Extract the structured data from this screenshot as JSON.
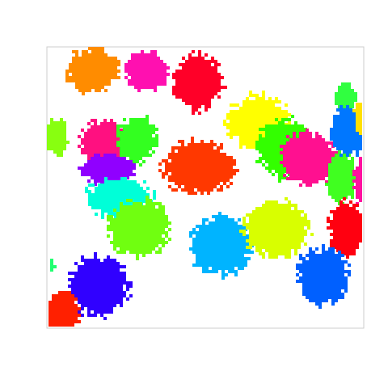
{
  "canvas": {
    "background": "#ffffff",
    "frame_color": "#cccccc"
  },
  "blobs": [
    {
      "name": "orange-blob",
      "color": "#ff8c00"
    },
    {
      "name": "pink-blob-top",
      "color": "#ff10b0"
    },
    {
      "name": "red-blob-top",
      "color": "#ff0028"
    },
    {
      "name": "yellow-blob-top-right",
      "color": "#ffff00"
    },
    {
      "name": "green-blob-top-right",
      "color": "#33ff00"
    },
    {
      "name": "magenta-blob-right",
      "color": "#ff1090"
    },
    {
      "name": "green-blob-edge-right",
      "color": "#30ff40"
    },
    {
      "name": "lime-blob-edge-right",
      "color": "#40ff20"
    },
    {
      "name": "blue-blob-edge-top-right",
      "color": "#0077ff"
    },
    {
      "name": "yellow-blob-edge-top-right",
      "color": "#ffe000"
    },
    {
      "name": "pink-blob-edge-right",
      "color": "#ff10a0"
    },
    {
      "name": "red-blob-right",
      "color": "#ff0010"
    },
    {
      "name": "lime-blob-left-edge",
      "color": "#88ff10"
    },
    {
      "name": "pink-blob-left",
      "color": "#ff1080"
    },
    {
      "name": "green-blob-left",
      "color": "#33ff20"
    },
    {
      "name": "purple-blob",
      "color": "#9000ff"
    },
    {
      "name": "cyan-blob",
      "color": "#00ffd8"
    },
    {
      "name": "lime-blob-center-left",
      "color": "#70ff10"
    },
    {
      "name": "red-orange-blob-center",
      "color": "#ff3800"
    },
    {
      "name": "sky-blue-blob",
      "color": "#00b4ff"
    },
    {
      "name": "yellow-green-blob",
      "color": "#d8ff00"
    },
    {
      "name": "blue-blob-bottom-right",
      "color": "#0060ff"
    },
    {
      "name": "blue-violet-blob",
      "color": "#3000ff"
    },
    {
      "name": "red-blob-bottom-left",
      "color": "#ff2000"
    },
    {
      "name": "green-speck-left",
      "color": "#20ff70"
    }
  ]
}
